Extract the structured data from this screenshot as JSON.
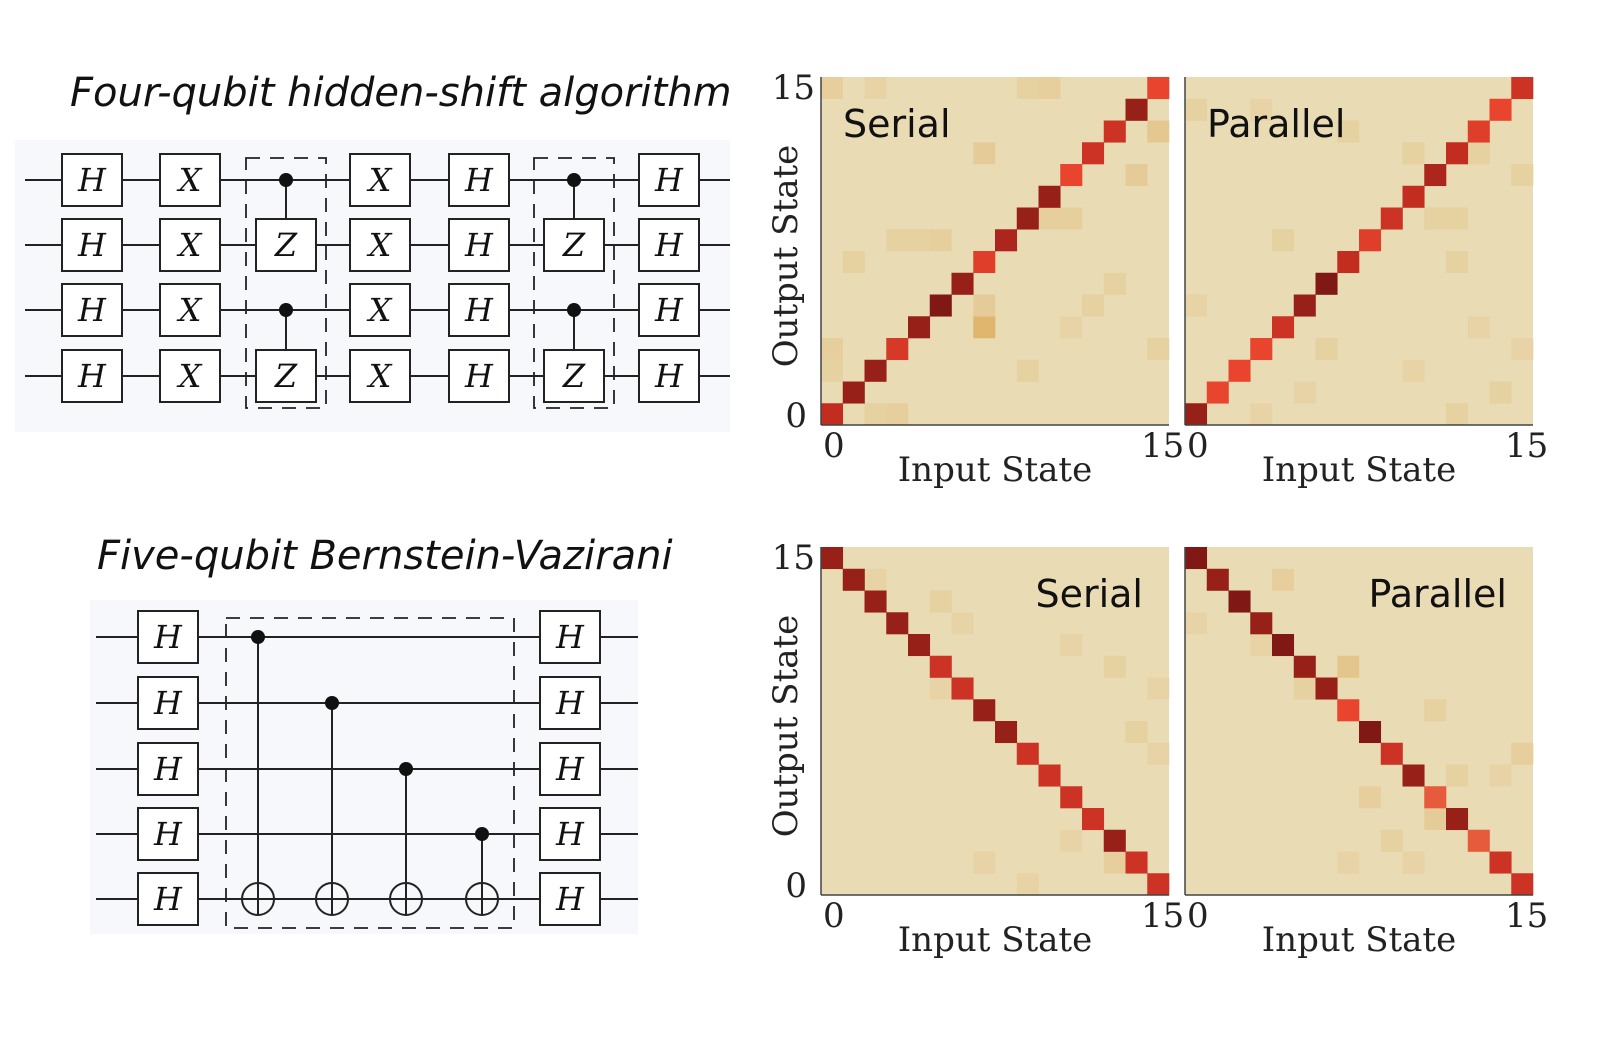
{
  "titles": {
    "hidden_shift": "Four-qubit hidden-shift algorithm",
    "bernstein_vazirani": "Five-qubit Bernstein-Vazirani"
  },
  "hidden_shift_circuit": {
    "qubits": 4,
    "columns": [
      {
        "type": "gates",
        "labels": [
          "H",
          "H",
          "H",
          "H"
        ]
      },
      {
        "type": "gates",
        "labels": [
          "X",
          "X",
          "X",
          "X"
        ]
      },
      {
        "type": "cz-pairs",
        "target_label": "Z",
        "pairs": [
          [
            0,
            1
          ],
          [
            2,
            3
          ]
        ]
      },
      {
        "type": "gates",
        "labels": [
          "X",
          "X",
          "X",
          "X"
        ]
      },
      {
        "type": "gates",
        "labels": [
          "H",
          "H",
          "H",
          "H"
        ]
      },
      {
        "type": "cz-pairs",
        "target_label": "Z",
        "pairs": [
          [
            0,
            1
          ],
          [
            2,
            3
          ]
        ]
      },
      {
        "type": "gates",
        "labels": [
          "H",
          "H",
          "H",
          "H"
        ]
      }
    ]
  },
  "bv_circuit": {
    "qubits": 5,
    "pre_gate_label": "H",
    "post_gate_label": "H",
    "cnot_controls": [
      0,
      1,
      2,
      3
    ],
    "cnot_target": 4
  },
  "heatmap_common": {
    "xlabel": "Input State",
    "ylabel": "Output State",
    "tick_min": "0",
    "tick_max": "15",
    "background_color": "#e9dcb5",
    "scale_colors": [
      "#e9dcb5",
      "#e0b56e",
      "#e8442e",
      "#c32d20",
      "#6a1212"
    ]
  },
  "chart_data": [
    {
      "type": "heatmap",
      "label": "Serial",
      "label_position": "top-left",
      "n": 16,
      "pattern": "diagonal",
      "diagonal": [
        0.8,
        0.9,
        0.9,
        0.7,
        0.9,
        0.95,
        0.9,
        0.65,
        0.85,
        0.9,
        0.9,
        0.6,
        0.75,
        0.75,
        0.9,
        0.6
      ],
      "offdiag": [
        [
          0,
          15,
          0.12
        ],
        [
          2,
          15,
          0.08
        ],
        [
          9,
          15,
          0.1
        ],
        [
          10,
          15,
          0.12
        ],
        [
          14,
          14,
          0.15
        ],
        [
          15,
          13,
          0.18
        ],
        [
          7,
          12,
          0.15
        ],
        [
          14,
          11,
          0.15
        ],
        [
          10,
          9,
          0.12
        ],
        [
          11,
          9,
          0.12
        ],
        [
          5,
          8,
          0.12
        ],
        [
          3,
          8,
          0.1
        ],
        [
          4,
          8,
          0.1
        ],
        [
          1,
          7,
          0.1
        ],
        [
          7,
          4,
          0.35
        ],
        [
          7,
          5,
          0.15
        ],
        [
          0,
          3,
          0.12
        ],
        [
          0,
          2,
          0.1
        ],
        [
          3,
          0,
          0.12
        ],
        [
          2,
          0,
          0.1
        ],
        [
          9,
          2,
          0.1
        ],
        [
          12,
          5,
          0.1
        ],
        [
          13,
          6,
          0.1
        ],
        [
          15,
          3,
          0.1
        ],
        [
          11,
          4,
          0.08
        ]
      ]
    },
    {
      "type": "heatmap",
      "label": "Parallel",
      "label_position": "top-left",
      "n": 16,
      "pattern": "diagonal",
      "diagonal": [
        0.9,
        0.6,
        0.6,
        0.6,
        0.75,
        0.9,
        0.95,
        0.8,
        0.65,
        0.75,
        0.8,
        0.85,
        0.8,
        0.65,
        0.6,
        0.75
      ],
      "offdiag": [
        [
          0,
          14,
          0.1
        ],
        [
          3,
          14,
          0.08
        ],
        [
          7,
          13,
          0.1
        ],
        [
          10,
          12,
          0.1
        ],
        [
          13,
          12,
          0.1
        ],
        [
          15,
          11,
          0.1
        ],
        [
          11,
          9,
          0.1
        ],
        [
          12,
          9,
          0.1
        ],
        [
          4,
          8,
          0.1
        ],
        [
          6,
          6,
          0.1
        ],
        [
          12,
          7,
          0.1
        ],
        [
          0,
          5,
          0.08
        ],
        [
          13,
          4,
          0.08
        ],
        [
          6,
          3,
          0.1
        ],
        [
          10,
          2,
          0.08
        ],
        [
          15,
          3,
          0.08
        ],
        [
          3,
          0,
          0.08
        ],
        [
          5,
          1,
          0.08
        ],
        [
          14,
          1,
          0.1
        ],
        [
          12,
          0,
          0.1
        ]
      ]
    },
    {
      "type": "heatmap",
      "label": "Serial",
      "label_position": "top-right",
      "n": 16,
      "pattern": "anti-diagonal",
      "diagonal": [
        0.9,
        0.9,
        0.9,
        0.9,
        0.9,
        0.75,
        0.75,
        0.9,
        0.9,
        0.75,
        0.75,
        0.75,
        0.75,
        0.9,
        0.75,
        0.75
      ],
      "offdiag": [
        [
          2,
          14,
          0.08
        ],
        [
          5,
          13,
          0.1
        ],
        [
          6,
          12,
          0.08
        ],
        [
          11,
          11,
          0.08
        ],
        [
          13,
          10,
          0.1
        ],
        [
          15,
          9,
          0.08
        ],
        [
          5,
          9,
          0.08
        ],
        [
          14,
          7,
          0.1
        ],
        [
          15,
          6,
          0.08
        ],
        [
          7,
          1,
          0.08
        ],
        [
          9,
          0,
          0.08
        ],
        [
          13,
          1,
          0.12
        ],
        [
          11,
          2,
          0.08
        ]
      ]
    },
    {
      "type": "heatmap",
      "label": "Parallel",
      "label_position": "top-right",
      "n": 16,
      "pattern": "anti-diagonal",
      "diagonal": [
        0.95,
        0.9,
        0.95,
        0.9,
        0.95,
        0.9,
        0.9,
        0.6,
        0.95,
        0.75,
        0.9,
        0.55,
        0.9,
        0.55,
        0.75,
        0.75
      ],
      "offdiag": [
        [
          4,
          14,
          0.12
        ],
        [
          0,
          12,
          0.08
        ],
        [
          3,
          11,
          0.08
        ],
        [
          7,
          10,
          0.2
        ],
        [
          5,
          9,
          0.1
        ],
        [
          11,
          8,
          0.1
        ],
        [
          15,
          6,
          0.12
        ],
        [
          14,
          5,
          0.08
        ],
        [
          8,
          4,
          0.12
        ],
        [
          12,
          5,
          0.1
        ],
        [
          9,
          2,
          0.1
        ],
        [
          11,
          3,
          0.15
        ],
        [
          10,
          1,
          0.08
        ],
        [
          13,
          2,
          0.08
        ],
        [
          7,
          1,
          0.08
        ]
      ]
    }
  ]
}
